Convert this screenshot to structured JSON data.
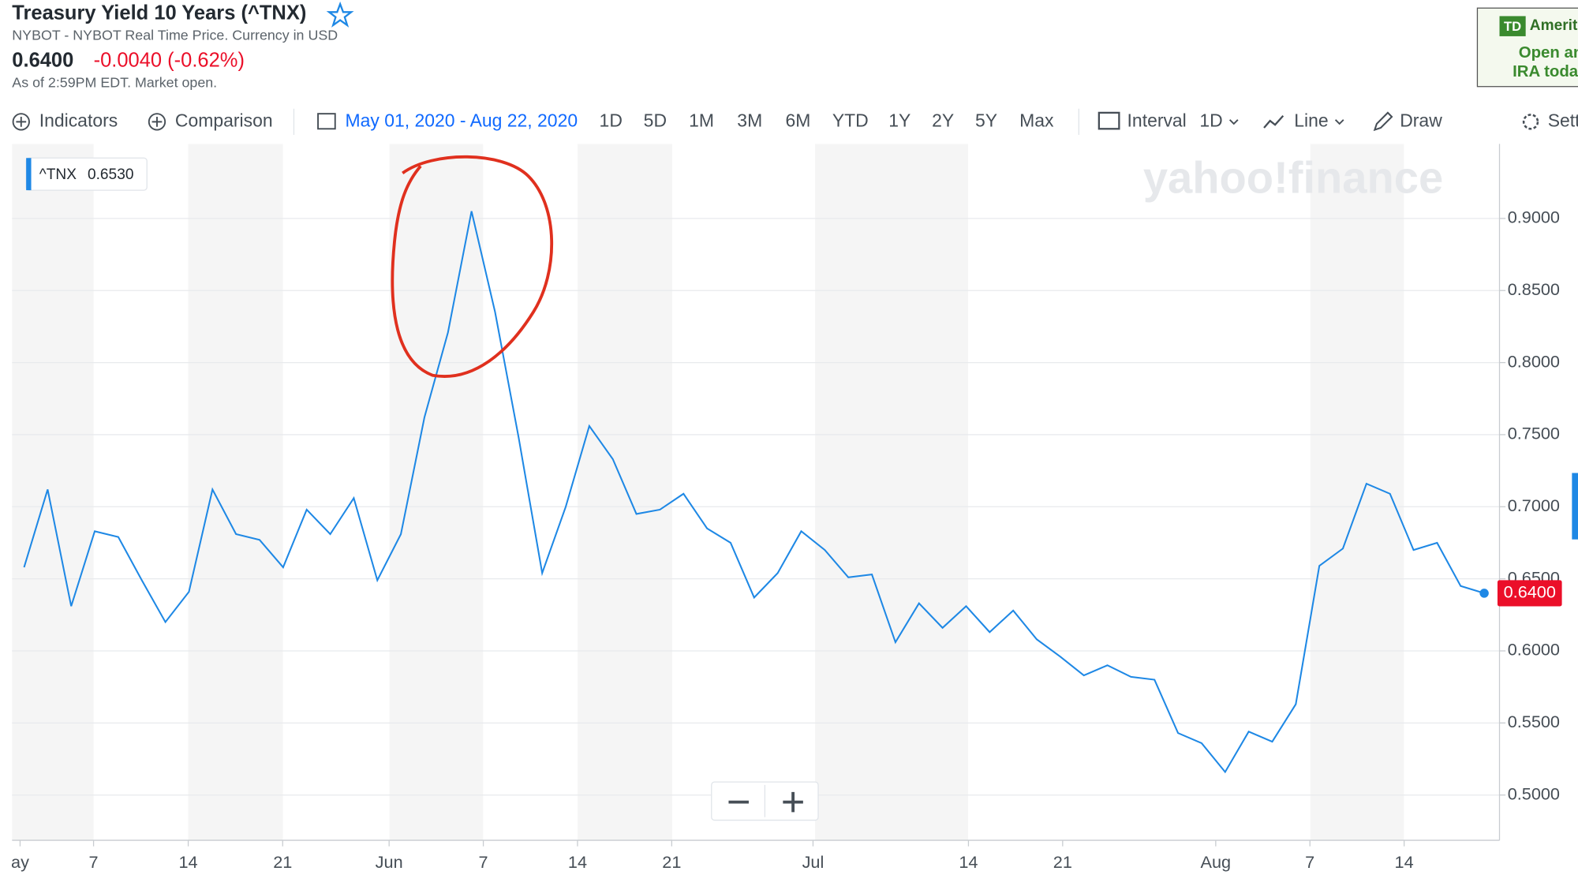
{
  "header": {
    "title": "Treasury Yield 10 Years (^TNX)",
    "subtitle": "NYBOT - NYBOT Real Time Price. Currency in USD",
    "price": "0.6400",
    "change": "-0.0040 (-0.62%)",
    "status": "As of 2:59PM EDT. Market open."
  },
  "toolbar": {
    "indicators": "Indicators",
    "comparison": "Comparison",
    "date_range": "May 01, 2020 - Aug 22, 2020",
    "ranges": [
      "1D",
      "5D",
      "1M",
      "3M",
      "6M",
      "YTD",
      "1Y",
      "2Y",
      "5Y",
      "Max"
    ],
    "interval": "Interval",
    "interval_value": "1D",
    "chart_type": "Line",
    "draw": "Draw",
    "settings": "Settings"
  },
  "ad": {
    "brand": "TD",
    "name": "Ameritrade",
    "lines": [
      "Open an",
      "IRA today"
    ]
  },
  "chart_data": {
    "type": "line",
    "watermark": "yahoo!finance",
    "tooltip_value": "0.6530",
    "last_value_label": "0.6400",
    "series": [
      {
        "name": "^TNX",
        "color": "#1e88e5",
        "values": [
          0.658,
          0.712,
          0.631,
          0.683,
          0.679,
          0.649,
          0.62,
          0.641,
          0.712,
          0.681,
          0.677,
          0.658,
          0.698,
          0.681,
          0.706,
          0.649,
          0.681,
          0.762,
          0.821,
          0.905,
          0.835,
          0.748,
          0.654,
          0.7,
          0.756,
          0.733,
          0.695,
          0.698,
          0.709,
          0.685,
          0.675,
          0.637,
          0.654,
          0.683,
          0.67,
          0.651,
          0.653,
          0.606,
          0.633,
          0.616,
          0.631,
          0.613,
          0.628,
          0.608,
          0.596,
          0.583,
          0.59,
          0.582,
          0.58,
          0.543,
          0.536,
          0.516,
          0.544,
          0.537,
          0.563,
          0.659,
          0.671,
          0.716,
          0.709,
          0.67,
          0.675,
          0.645,
          0.64
        ]
      }
    ],
    "xlim": [
      -0.51,
      62.65
    ],
    "xticks": [
      {
        "value": -0.17,
        "label": "ay"
      },
      {
        "value": 2.95,
        "label": "7"
      },
      {
        "value": 6.97,
        "label": "14"
      },
      {
        "value": 10.98,
        "label": "21"
      },
      {
        "value": 15.5,
        "label": "Jun"
      },
      {
        "value": 19.5,
        "label": "7"
      },
      {
        "value": 23.5,
        "label": "14"
      },
      {
        "value": 27.5,
        "label": "21"
      },
      {
        "value": 33.5,
        "label": "Jul"
      },
      {
        "value": 40.1,
        "label": "14"
      },
      {
        "value": 44.1,
        "label": "21"
      },
      {
        "value": 50.6,
        "label": "Aug"
      },
      {
        "value": 54.6,
        "label": "7"
      },
      {
        "value": 58.6,
        "label": "14"
      }
    ],
    "ylim": [
      0.4686,
      0.9517
    ],
    "yticks": [
      {
        "value": 0.5,
        "label": "0.5000"
      },
      {
        "value": 0.55,
        "label": "0.5500"
      },
      {
        "value": 0.6,
        "label": "0.6000"
      },
      {
        "value": 0.65,
        "label": "0.6500"
      },
      {
        "value": 0.7,
        "label": "0.7000"
      },
      {
        "value": 0.75,
        "label": "0.7500"
      },
      {
        "value": 0.8,
        "label": "0.8000"
      },
      {
        "value": 0.85,
        "label": "0.8500"
      },
      {
        "value": 0.9,
        "label": "0.9000"
      }
    ],
    "grid": true
  }
}
